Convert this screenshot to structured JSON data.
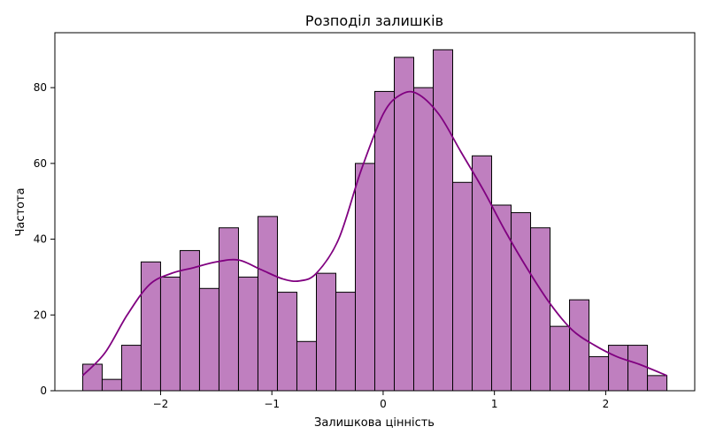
{
  "chart_data": {
    "type": "bar",
    "title": "Розподіл залишків",
    "xlabel": "Залишкова цінність",
    "ylabel": "Частота",
    "xlim": [
      -2.95,
      2.8
    ],
    "ylim": [
      0,
      94.5
    ],
    "x_ticks": [
      -2,
      -1,
      0,
      1,
      2
    ],
    "y_ticks": [
      0,
      20,
      40,
      60,
      80
    ],
    "grid": false,
    "bins": {
      "start": -2.7,
      "width": 0.175,
      "counts": [
        7,
        3,
        12,
        34,
        30,
        37,
        27,
        43,
        30,
        46,
        26,
        13,
        31,
        26,
        60,
        79,
        88,
        80,
        90,
        55,
        62,
        49,
        47,
        43,
        17,
        24,
        9,
        12,
        12,
        4
      ]
    },
    "kde": {
      "x": [
        -2.7,
        -2.5,
        -2.3,
        -2.1,
        -1.9,
        -1.7,
        -1.5,
        -1.3,
        -1.1,
        -0.9,
        -0.75,
        -0.6,
        -0.4,
        -0.2,
        0.0,
        0.15,
        0.3,
        0.5,
        0.7,
        0.9,
        1.1,
        1.3,
        1.5,
        1.7,
        1.9,
        2.1,
        2.3,
        2.55
      ],
      "y": [
        4,
        10,
        20,
        28,
        31,
        32.5,
        34,
        34.5,
        32,
        29.5,
        29,
        31,
        40,
        58,
        73,
        78,
        78.5,
        73,
        63,
        53,
        42,
        32,
        23,
        16,
        12,
        9,
        7,
        4
      ]
    },
    "colors": {
      "bar_fill": "#bf7fbf",
      "bar_edge": "#000000",
      "kde_line": "#800080"
    }
  }
}
